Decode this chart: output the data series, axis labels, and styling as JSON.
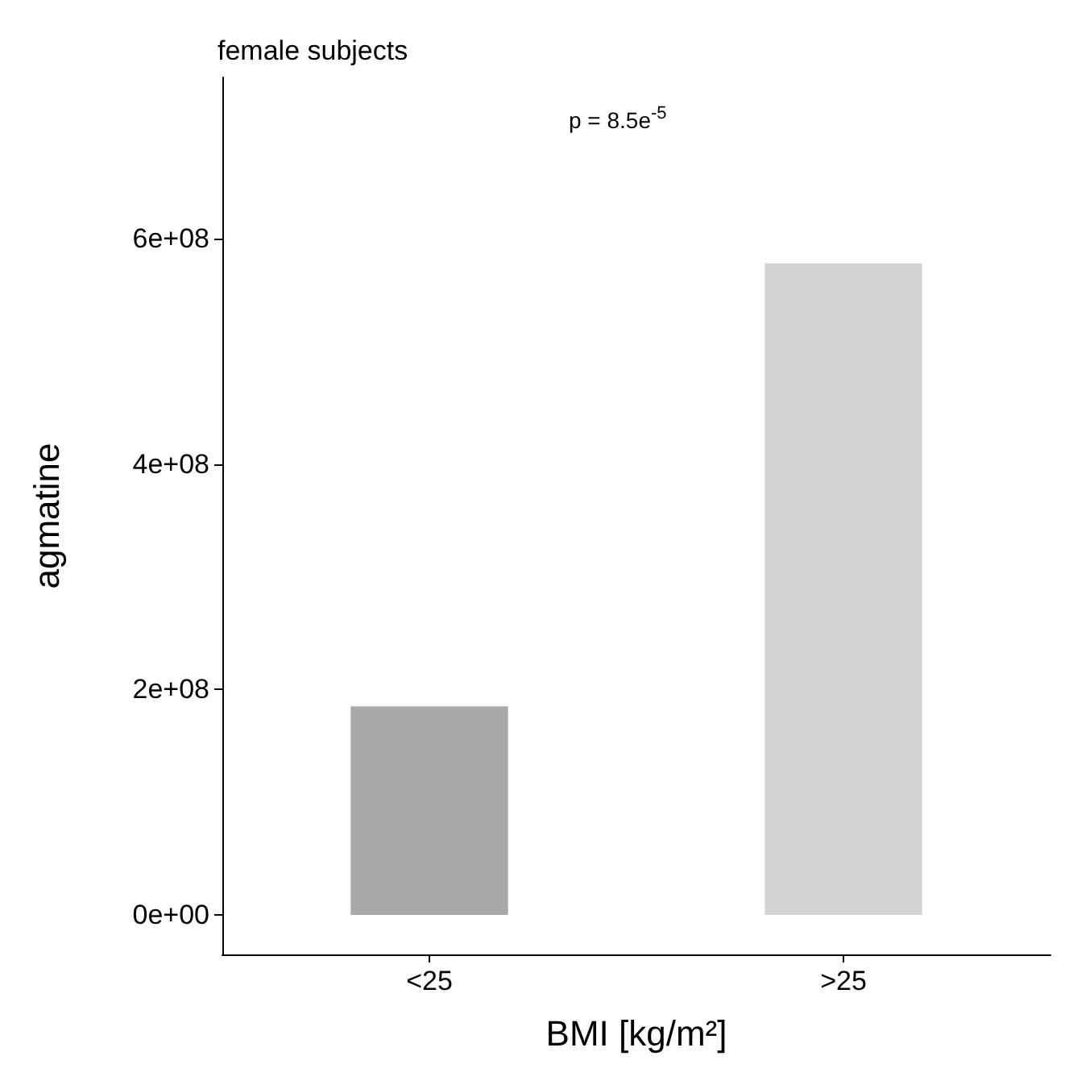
{
  "chart_data": {
    "type": "bar",
    "title": "female subjects",
    "xlabel": "BMI [kg/m²]",
    "ylabel": "agmatine",
    "categories": [
      "<25",
      ">25"
    ],
    "colors": [
      "#a9a9a9",
      "#d3d3d3"
    ],
    "values": [
      185000000,
      578000000
    ],
    "ylim": [
      -35000000,
      743000000
    ],
    "yticks": [
      {
        "value": 0,
        "label": "0e+00"
      },
      {
        "value": 200000000,
        "label": "2e+08"
      },
      {
        "value": 400000000,
        "label": "4e+08"
      },
      {
        "value": 600000000,
        "label": "6e+08"
      }
    ],
    "annotations": [
      "p = 8.5e$^{-5}$"
    ],
    "grid": false
  }
}
